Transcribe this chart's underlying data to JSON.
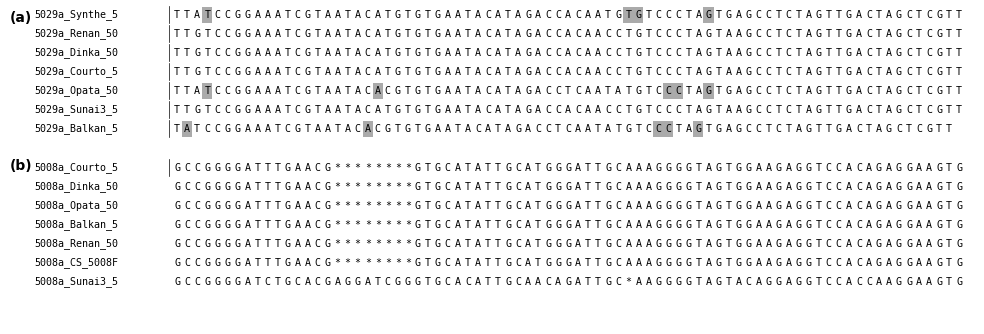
{
  "panel_a_label": "(a)",
  "panel_b_label": "(b)",
  "panel_a_rows": [
    {
      "name": "5029a_Synthe_5",
      "seq": "TTATCCGGAAATCGTAATACATGTGTGAATACATAGACCACAATGTGTCCCTAGTGAGCCTCTAGTTGACTAGCTCGTT",
      "highlights": [
        3,
        45,
        46,
        53
      ]
    },
    {
      "name": "5029a_Renan_50",
      "seq": "TTGTCCGGAAATCGTAATACATGTGTGAATACATAGACCACAACCTGTCCCTAGTAAGCCTCTAGTTGACTAGCTCGTT",
      "highlights": []
    },
    {
      "name": "5029a_Dinka_50",
      "seq": "TTGTCCGGAAATCGTAATACATGTGTGAATACATAGACCACAACCTGTCCCTAGTAAGCCTCTAGTTGACTAGCTCGTT",
      "highlights": []
    },
    {
      "name": "5029a_Courto_5",
      "seq": "TTGTCCGGAAATCGTAATACATGTGTGAATACATAGACCACAACCTGTCCCTAGTAAGCCTCTAGTTGACTAGCTCGTT",
      "highlights": []
    },
    {
      "name": "5029a_Opata_50",
      "seq": "TTATCCGGAAATCGTAATACACGTGTGAATACATAGACCTCAATATGTCCCTAGTGAGCCTCTAGTTGACTAGCTCGTT",
      "highlights": [
        3,
        20,
        49,
        50,
        53
      ]
    },
    {
      "name": "5029a_Sunai3_5",
      "seq": "TTGTCCGGAAATCGTAATACATGTGTGAATACATAGACCACAACCTGTCCCTAGTAAGCCTCTAGTTGACTAGCTCGTT",
      "highlights": []
    },
    {
      "name": "5029a_Balkan_5",
      "seq": "TATCCGGAAATCGTAATACACGTGTGAATACATAGACCTCAATATGTCCCTAGTGAGCCTCTAGTTGACTAGCTCGTT",
      "highlights": [
        1,
        19,
        48,
        49,
        52
      ]
    }
  ],
  "panel_b_rows": [
    {
      "name": "5008a_Courto_5",
      "seq": "GCCGGGGATTTGAACG********GTGCATATTGCATGGGATTGCAAAGGGGTAGTGGAAGAGGTCCACAGAGGAAGTG",
      "highlights": []
    },
    {
      "name": "5008a_Dinka_50",
      "seq": "GCCGGGGATTTGAACG********GTGCATATTGCATGGGATTGCAAAGGGGTAGTGGAAGAGGTCCACAGAGGAAGTG",
      "highlights": []
    },
    {
      "name": "5008a_Opata_50",
      "seq": "GCCGGGGATTTGAACG********GTGCATATTGCATGGGATTGCAAAGGGGTAGTGGAAGAGGTCCACAGAGGAAGTG",
      "highlights": []
    },
    {
      "name": "5008a_Balkan_5",
      "seq": "GCCGGGGATTTGAACG********GTGCATATTGCATGGGATTGCAAAGGGGTAGTGGAAGAGGTCCACAGAGGAAGTG",
      "highlights": []
    },
    {
      "name": "5008a_Renan_50",
      "seq": "GCCGGGGATTTGAACG********GTGCATATTGCATGGGATTGCAAAGGGGTAGTGGAAGAGGTCCACAGAGGAAGTG",
      "highlights": []
    },
    {
      "name": "5008a_CS_5008F",
      "seq": "GCCGGGGATTTGAACG********GTGCATATTGCATGGGATTGCAAAGGGGTAGTGGAAGAGGTCCACAGAGGAAGTG",
      "highlights": []
    },
    {
      "name": "5008a_Sunai3_5",
      "seq": "GCCGGGGATCTGCACGAGGATCGGGTGCACATTGCAACAGATTGC*AAGGGGTAGTACAGGAGGTCCACCAAGGAAGTG",
      "highlights": [
        10,
        11,
        17,
        18,
        19,
        20,
        21,
        22,
        23,
        24,
        25,
        30,
        31,
        32,
        33,
        34,
        35,
        36,
        37,
        38,
        45,
        54,
        55,
        56,
        57,
        58,
        69,
        70,
        71,
        72,
        73
      ]
    }
  ],
  "highlight_color": "#aaaaaa",
  "seq_color": "#000000",
  "name_color": "#000000",
  "bg_color": "#ffffff",
  "font_family": "monospace",
  "font_size": 7.2,
  "name_font_size": 7.2,
  "label_font_size": 10
}
